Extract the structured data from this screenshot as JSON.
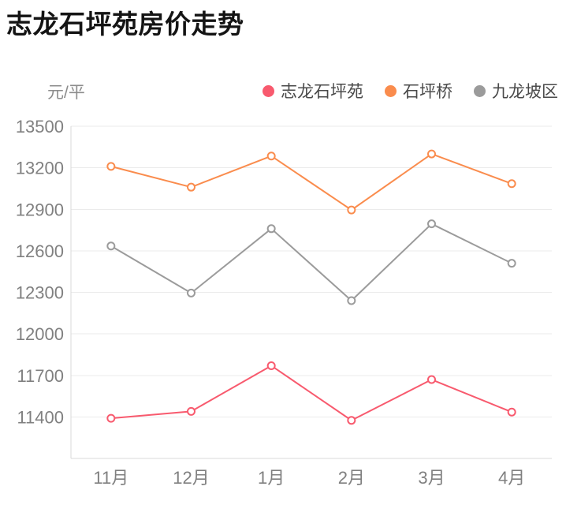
{
  "title": "志龙石坪苑房价走势",
  "y_unit_label": "元/平",
  "colors": {
    "series_pink": "#f85a6e",
    "series_orange": "#fa8c4d",
    "series_gray": "#9b9b9b",
    "grid_line": "#ebebeb",
    "axis_line": "#d9d9d9",
    "tick_text": "#808080",
    "legend_text": "#4a4a4a",
    "title_text": "#141414"
  },
  "chart_data": {
    "type": "line",
    "title": "志龙石坪苑房价走势",
    "xlabel": "",
    "ylabel": "元/平",
    "categories": [
      "11月",
      "12月",
      "1月",
      "2月",
      "3月",
      "4月"
    ],
    "series": [
      {
        "name": "志龙石坪苑",
        "color": "#f85a6e",
        "values": [
          11390,
          11440,
          11770,
          11375,
          11670,
          11435
        ]
      },
      {
        "name": "石坪桥",
        "color": "#fa8c4d",
        "values": [
          13210,
          13060,
          13285,
          12895,
          13300,
          13085
        ]
      },
      {
        "name": "九龙坡区",
        "color": "#9b9b9b",
        "values": [
          12635,
          12295,
          12760,
          12240,
          12795,
          12510
        ]
      }
    ],
    "ylim": [
      11100,
      13500
    ],
    "ytick_interval": 300,
    "ytick_labels": [
      "13500",
      "13200",
      "12900",
      "12600",
      "12300",
      "12000",
      "11700",
      "11400"
    ],
    "grid": true,
    "legend_position": "top-right",
    "marker": "hollow-circle"
  }
}
